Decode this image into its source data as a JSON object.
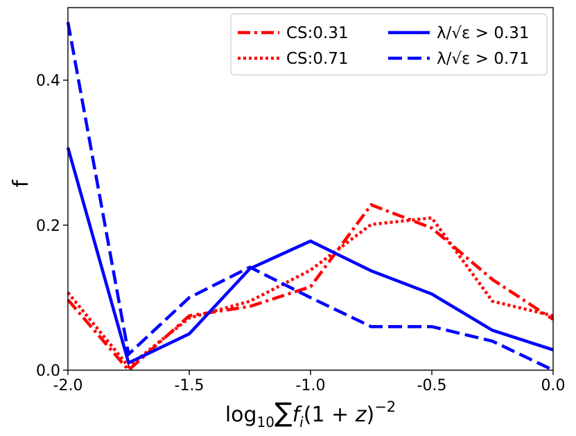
{
  "chart_data": {
    "type": "line",
    "xlabel": "log10∑fi(1+z)^-2",
    "xlabel_parts": {
      "log": "log",
      "sub": "10",
      "sum": "∑",
      "f": "f",
      "i": "i",
      "rest": "(1 + ",
      "z": "z",
      "close": ")",
      "exp": "−2"
    },
    "ylabel": "f",
    "xlim": [
      -2.0,
      0.0
    ],
    "ylim": [
      0.0,
      0.5
    ],
    "xticks": [
      -2.0,
      -1.5,
      -1.0,
      -0.5,
      0.0
    ],
    "xtick_labels": [
      "-2.0",
      "-1.5",
      "-1.0",
      "-0.5",
      "0.0"
    ],
    "yticks": [
      0.0,
      0.2,
      0.4
    ],
    "ytick_labels": [
      "0.0",
      "0.2",
      "0.4"
    ],
    "legend_location": "top-right",
    "x": [
      -2.0,
      -1.75,
      -1.5,
      -1.25,
      -1.0,
      -0.75,
      -0.5,
      -0.25,
      0.0
    ],
    "series": [
      {
        "name": "CS:0.31",
        "color": "#ff0000",
        "style": "dashdot",
        "values": [
          0.097,
          0.0,
          0.075,
          0.088,
          0.115,
          0.228,
          0.196,
          0.125,
          0.07
        ]
      },
      {
        "name": "CS:0.71",
        "color": "#ff0000",
        "style": "dotted",
        "values": [
          0.107,
          0.005,
          0.072,
          0.095,
          0.138,
          0.201,
          0.21,
          0.095,
          0.075
        ]
      },
      {
        "name": "λ/√ε > 0.31",
        "color": "#0000ff",
        "style": "solid",
        "values": [
          0.307,
          0.01,
          0.05,
          0.14,
          0.178,
          0.137,
          0.105,
          0.055,
          0.028
        ]
      },
      {
        "name": "λ/√ε > 0.71",
        "color": "#0000ff",
        "style": "dashed",
        "values": [
          0.48,
          0.022,
          0.1,
          0.142,
          0.1,
          0.06,
          0.06,
          0.04,
          0.0
        ]
      }
    ]
  }
}
